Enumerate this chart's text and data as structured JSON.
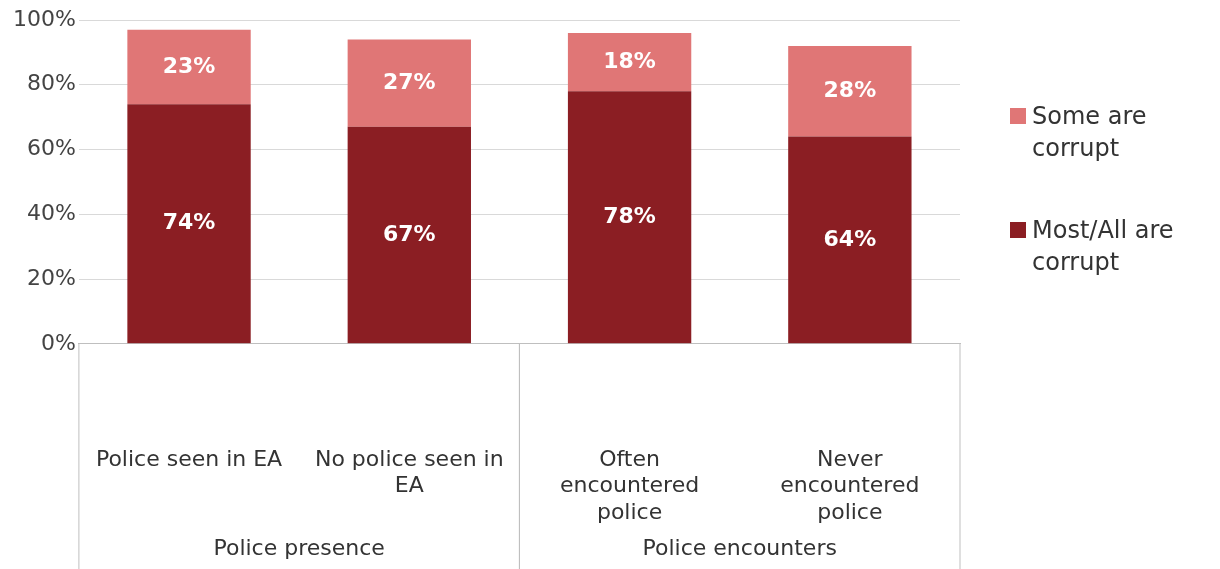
{
  "chart_data": {
    "type": "bar",
    "stacked": true,
    "categories": [
      "Police seen in EA",
      "No police seen in EA",
      "Often encountered police",
      "Never encountered police"
    ],
    "series": [
      {
        "name": "Most/All are corrupt",
        "color": "#8b1e23",
        "values": [
          74,
          67,
          78,
          64
        ],
        "value_labels": [
          "74%",
          "67%",
          "78%",
          "64%"
        ]
      },
      {
        "name": "Some are corrupt",
        "color": "#e07676",
        "values": [
          23,
          27,
          18,
          28
        ],
        "value_labels": [
          "23%",
          "27%",
          "18%",
          "28%"
        ]
      }
    ],
    "ylim": [
      0,
      100
    ],
    "yticks": [
      {
        "value": 0,
        "label": "0%"
      },
      {
        "value": 20,
        "label": "20%"
      },
      {
        "value": 40,
        "label": "40%"
      },
      {
        "value": 60,
        "label": "60%"
      },
      {
        "value": 80,
        "label": "80%"
      },
      {
        "value": 100,
        "label": "100%"
      }
    ],
    "grid": "y",
    "legend": "right",
    "annotations": [
      "Police presence",
      "Police encounters"
    ]
  }
}
